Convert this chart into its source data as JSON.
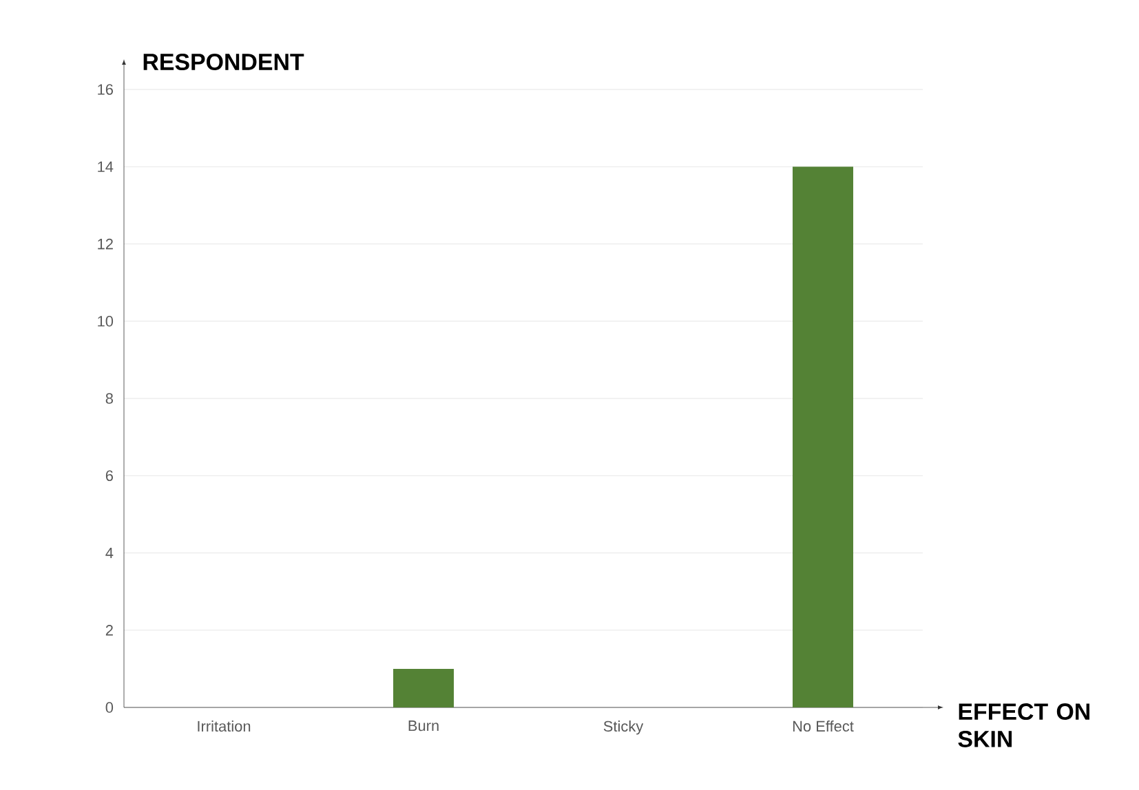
{
  "chart_data": {
    "type": "bar",
    "xlabel": "EFFECT ON SKIN",
    "ylabel": "RESPONDENT",
    "categories": [
      "Irritation",
      "Burn",
      "Sticky",
      "No Effect"
    ],
    "values": [
      0,
      1,
      0,
      14
    ],
    "color": "#548235",
    "ylim": [
      0,
      16
    ],
    "yticks": [
      0,
      2,
      4,
      6,
      8,
      10,
      12,
      14,
      16
    ],
    "grid": "y"
  }
}
